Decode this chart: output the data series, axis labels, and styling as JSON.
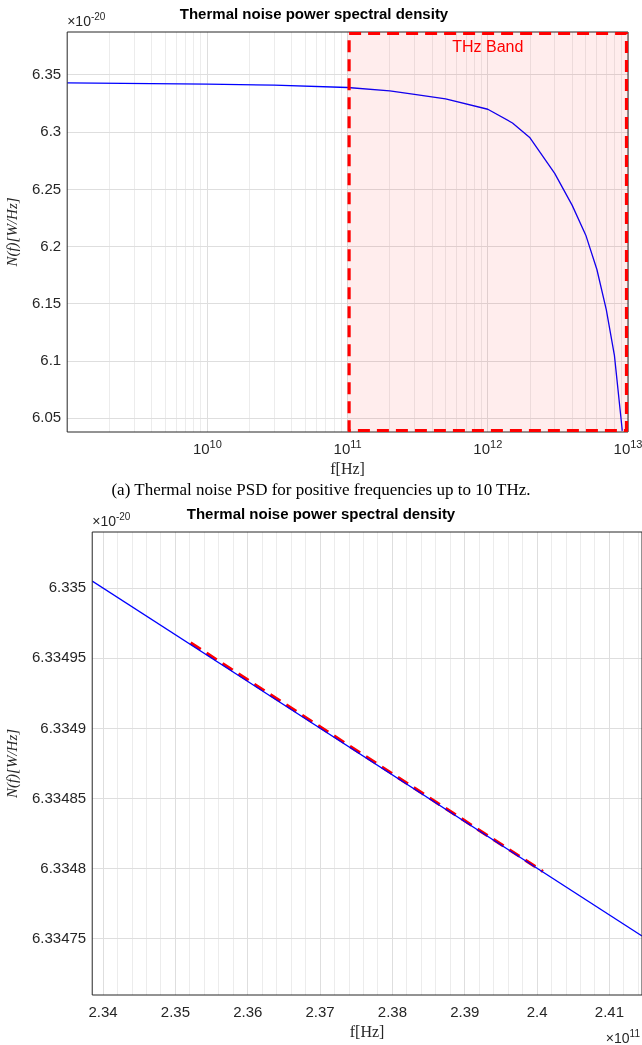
{
  "chart_data": [
    {
      "type": "line",
      "title": "Thermal noise power spectral density",
      "xlabel": "f[Hz]",
      "ylabel": "N(f)[W/Hz]",
      "log": "x",
      "grid": true,
      "marker": "none",
      "xlim": [
        1000000000.0,
        10000000000000.0
      ],
      "xticks": [
        {
          "value": 2000000000.0,
          "label": null
        },
        {
          "value": 3000000000.0,
          "label": null
        },
        {
          "value": 4000000000.0,
          "label": null
        },
        {
          "value": 5000000000.0,
          "label": null
        },
        {
          "value": 6000000000.0,
          "label": null
        },
        {
          "value": 7000000000.0,
          "label": null
        },
        {
          "value": 8000000000.0,
          "label": null
        },
        {
          "value": 9000000000.0,
          "label": null
        },
        {
          "value": 10000000000.0,
          "label": "10$^{10}$"
        },
        {
          "value": 20000000000.0,
          "label": null
        },
        {
          "value": 30000000000.0,
          "label": null
        },
        {
          "value": 40000000000.0,
          "label": null
        },
        {
          "value": 50000000000.0,
          "label": null
        },
        {
          "value": 60000000000.0,
          "label": null
        },
        {
          "value": 70000000000.0,
          "label": null
        },
        {
          "value": 80000000000.0,
          "label": null
        },
        {
          "value": 90000000000.0,
          "label": null
        },
        {
          "value": 100000000000.0,
          "label": "10$^{11}$"
        },
        {
          "value": 200000000000.0,
          "label": null
        },
        {
          "value": 300000000000.0,
          "label": null
        },
        {
          "value": 400000000000.0,
          "label": null
        },
        {
          "value": 500000000000.0,
          "label": null
        },
        {
          "value": 600000000000.0,
          "label": null
        },
        {
          "value": 700000000000.0,
          "label": null
        },
        {
          "value": 800000000000.0,
          "label": null
        },
        {
          "value": 900000000000.0,
          "label": null
        },
        {
          "value": 1000000000000.0,
          "label": "10$^{12}$"
        },
        {
          "value": 2000000000000.0,
          "label": null
        },
        {
          "value": 3000000000000.0,
          "label": null
        },
        {
          "value": 4000000000000.0,
          "label": null
        },
        {
          "value": 5000000000000.0,
          "label": null
        },
        {
          "value": 6000000000000.0,
          "label": null
        },
        {
          "value": 7000000000000.0,
          "label": null
        },
        {
          "value": 8000000000000.0,
          "label": null
        },
        {
          "value": 9000000000000.0,
          "label": null
        },
        {
          "value": 10000000000000.0,
          "label": "10$^{13}$"
        }
      ],
      "ylim": [
        6.038,
        6.3875
      ],
      "yticks": [
        6.05,
        6.1,
        6.15,
        6.2,
        6.25,
        6.3,
        6.35
      ],
      "series": [
        {
          "color": "#0000ff",
          "x": [
            1000000000.0,
            10000000000.0,
            30000000000.0,
            100000000000.0,
            200000000000.0,
            300000000000.0,
            500000000000.0,
            1000000000000.0,
            1500000000000.0,
            2000000000000.0,
            3000000000000.0,
            4000000000000.0,
            5000000000000.0,
            6000000000000.0,
            7000000000000.0,
            8000000000000.0,
            9000000000000.0,
            9100000000000.0
          ],
          "values": [
            6.343,
            6.342,
            6.341,
            6.339,
            6.336,
            6.333,
            6.329,
            6.32,
            6.308,
            6.295,
            6.264,
            6.236,
            6.21,
            6.18,
            6.145,
            6.105,
            6.045,
            6.039
          ]
        }
      ],
      "bands": [
        {
          "axis": "x",
          "from": 100000000000.0,
          "to": 10000000000000.0,
          "label": "THz Band",
          "color": "#ff0000"
        }
      ],
      "annotations": [
        "×10$^{-20}$",
        "(a) Thermal noise PSD for positive frequencies up to 10 THz."
      ]
    },
    {
      "type": "line",
      "title": "Thermal noise power spectral density",
      "xlabel": "f[Hz]",
      "ylabel": "N(f)[W/Hz]",
      "grid": true,
      "marker": "none",
      "xlim": [
        2.3385,
        2.4145
      ],
      "xticks": [
        2.34,
        {
          "value": 2.342,
          "label": null
        },
        {
          "value": 2.344,
          "label": null
        },
        {
          "value": 2.346,
          "label": null
        },
        {
          "value": 2.348,
          "label": null
        },
        2.35,
        {
          "value": 2.352,
          "label": null
        },
        {
          "value": 2.354,
          "label": null
        },
        {
          "value": 2.356,
          "label": null
        },
        {
          "value": 2.358,
          "label": null
        },
        2.36,
        {
          "value": 2.362,
          "label": null
        },
        {
          "value": 2.364,
          "label": null
        },
        {
          "value": 2.366,
          "label": null
        },
        {
          "value": 2.368,
          "label": null
        },
        2.37,
        {
          "value": 2.372,
          "label": null
        },
        {
          "value": 2.374,
          "label": null
        },
        {
          "value": 2.376,
          "label": null
        },
        {
          "value": 2.378,
          "label": null
        },
        2.38,
        {
          "value": 2.382,
          "label": null
        },
        {
          "value": 2.384,
          "label": null
        },
        {
          "value": 2.386,
          "label": null
        },
        {
          "value": 2.388,
          "label": null
        },
        2.39,
        {
          "value": 2.392,
          "label": null
        },
        {
          "value": 2.394,
          "label": null
        },
        {
          "value": 2.396,
          "label": null
        },
        {
          "value": 2.398,
          "label": null
        },
        2.4,
        {
          "value": 2.402,
          "label": null
        },
        {
          "value": 2.404,
          "label": null
        },
        {
          "value": 2.406,
          "label": null
        },
        {
          "value": 2.408,
          "label": null
        },
        2.41,
        {
          "value": 2.412,
          "label": null
        },
        {
          "value": 2.414,
          "label": null
        }
      ],
      "ylim": [
        6.33471,
        6.33504
      ],
      "yticks": [
        6.33475,
        6.3348,
        6.33485,
        6.3349,
        6.33495,
        6.335
      ],
      "series": [
        {
          "color": "#0000ff",
          "x": [
            2.3385,
            2.4145
          ],
          "values": [
            6.335005,
            6.334752
          ]
        },
        {
          "color": "#ff0000",
          "line_style": "dashed",
          "x": [
            2.3521,
            2.4008
          ],
          "values": [
            6.334961,
            6.334798
          ]
        }
      ],
      "annotations": [
        "×10$^{-20}$",
        "×10$^{11}$"
      ]
    }
  ]
}
